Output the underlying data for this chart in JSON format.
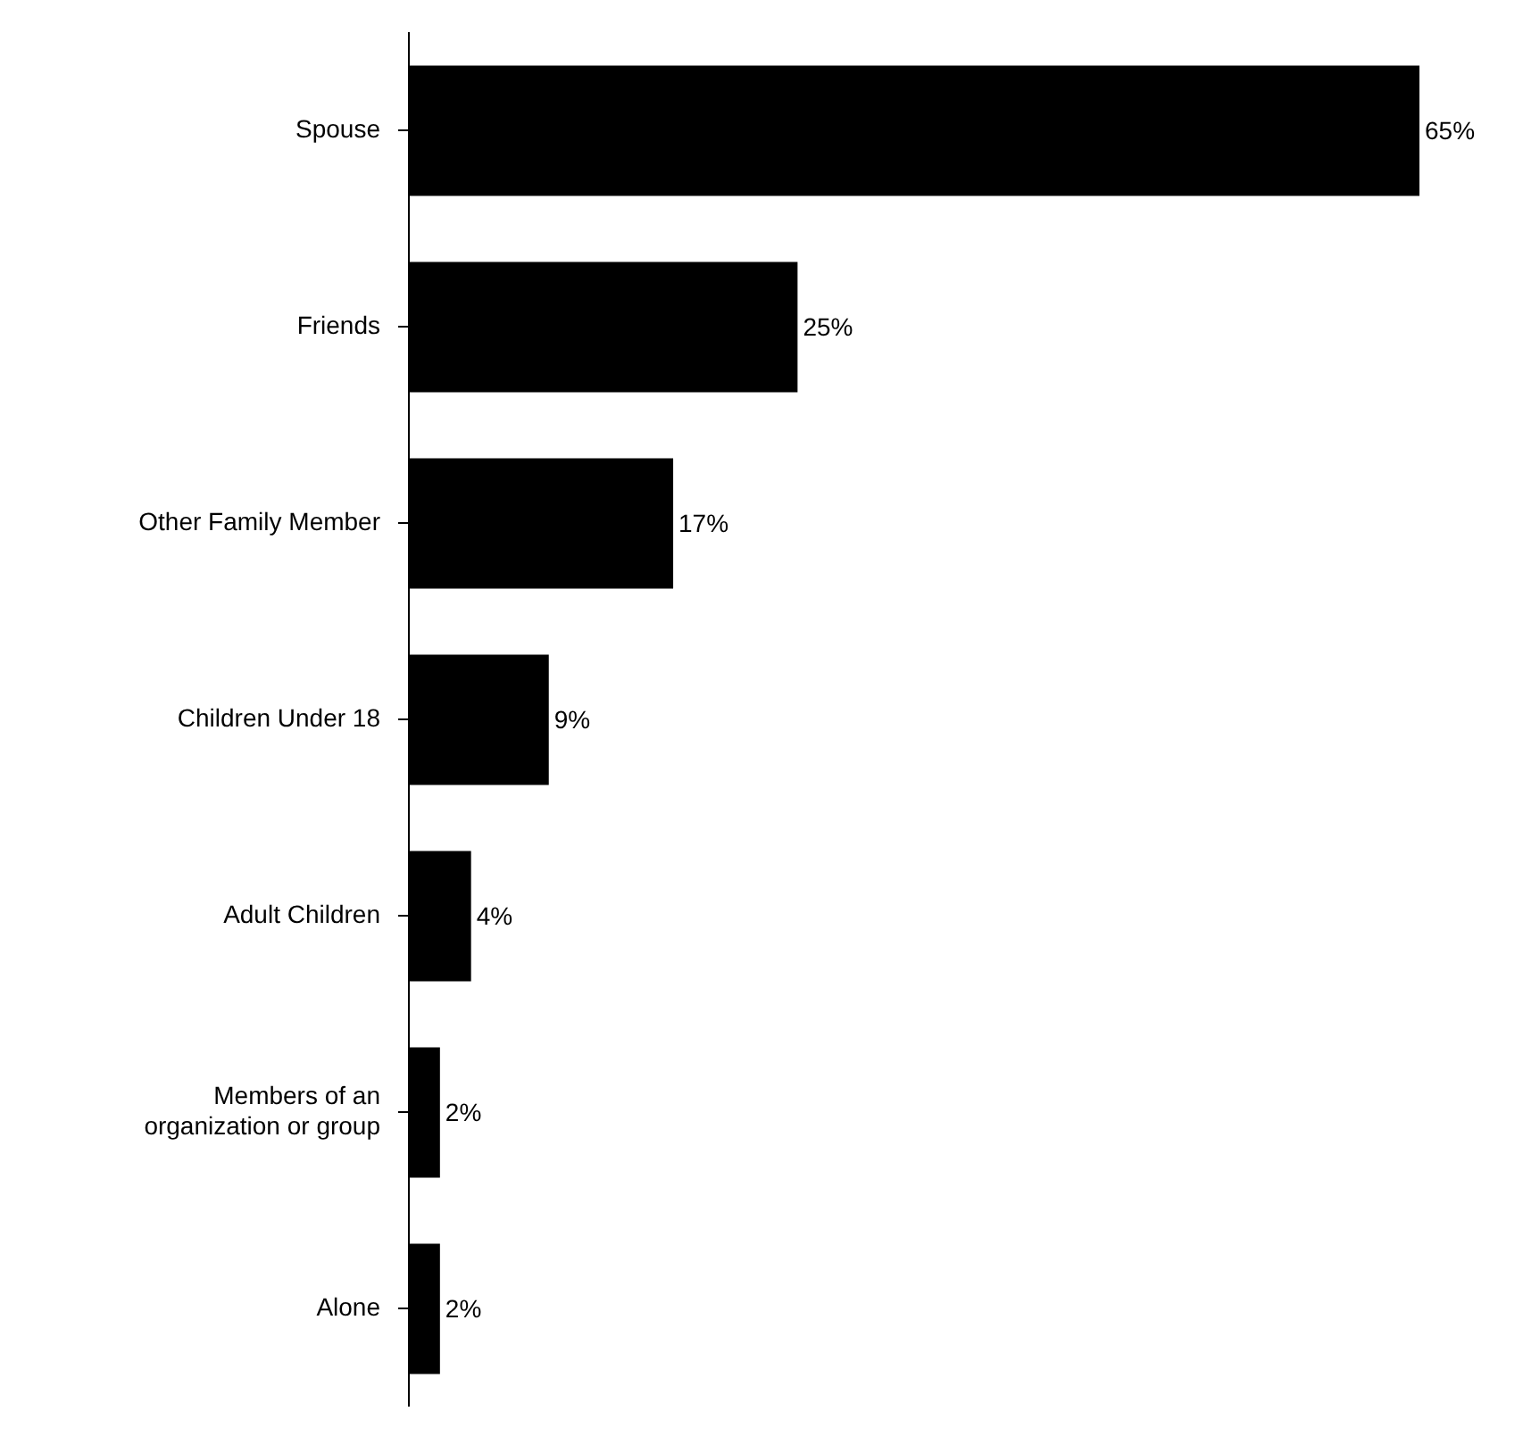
{
  "chart_data": {
    "type": "bar",
    "orientation": "horizontal",
    "categories": [
      "Spouse",
      "Friends",
      "Other Family Member",
      "Children Under 18",
      "Adult Children",
      "Members of an organization or group",
      "Alone"
    ],
    "values": [
      65,
      25,
      17,
      9,
      4,
      2,
      2
    ],
    "value_labels": [
      "65%",
      "25%",
      "17%",
      "9%",
      "4%",
      "2%",
      "2%"
    ],
    "color": "#000000",
    "grid": false,
    "legend": false,
    "tick_labels": "y"
  }
}
